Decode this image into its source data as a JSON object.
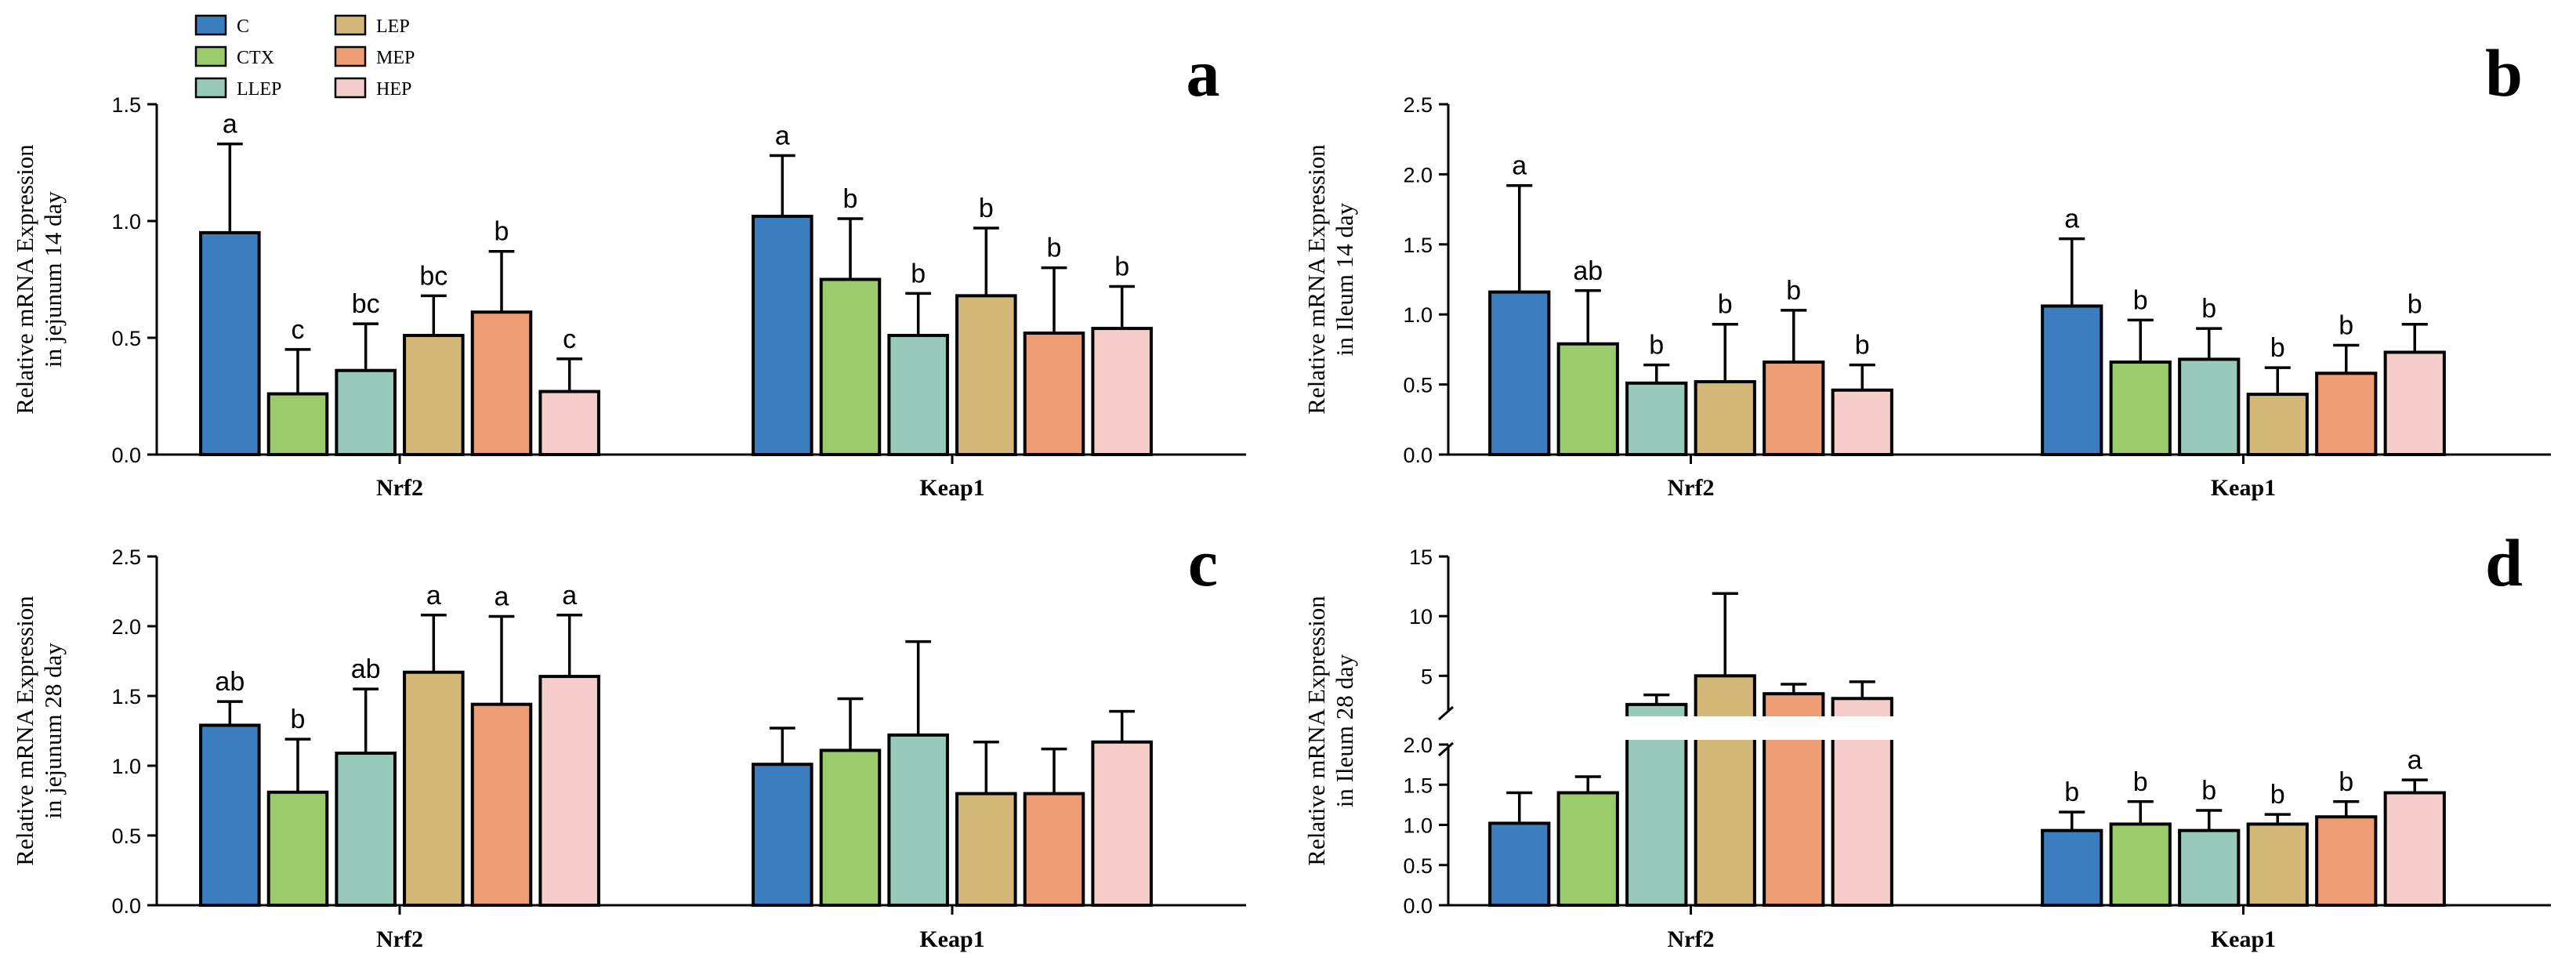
{
  "legend": [
    {
      "name": "C",
      "color": "#3a7ebf"
    },
    {
      "name": "CTX",
      "color": "#9acb6a"
    },
    {
      "name": "LLEP",
      "color": "#98cabc"
    },
    {
      "name": "LEP",
      "color": "#d4b878"
    },
    {
      "name": "MEP",
      "color": "#ee9c74"
    },
    {
      "name": "HEP",
      "color": "#f5cdcb"
    }
  ],
  "chart_data": [
    {
      "panel": "a",
      "type": "bar",
      "ylabel": [
        "Relative mRNA Expression",
        "in jejunum 14 day"
      ],
      "categories": [
        "Nrf2",
        "Keap1"
      ],
      "ylim": [
        0,
        1.5
      ],
      "yticks": [
        "0.0",
        "0.5",
        "1.0",
        "1.5"
      ],
      "series": [
        {
          "name": "C",
          "values": [
            0.95,
            1.02
          ],
          "errors": [
            0.38,
            0.26
          ],
          "letters": [
            "a",
            "a"
          ]
        },
        {
          "name": "CTX",
          "values": [
            0.26,
            0.75
          ],
          "errors": [
            0.19,
            0.26
          ],
          "letters": [
            "c",
            "b"
          ]
        },
        {
          "name": "LLEP",
          "values": [
            0.36,
            0.51
          ],
          "errors": [
            0.2,
            0.18
          ],
          "letters": [
            "bc",
            "b"
          ]
        },
        {
          "name": "LEP",
          "values": [
            0.51,
            0.68
          ],
          "errors": [
            0.17,
            0.29
          ],
          "letters": [
            "bc",
            "b"
          ]
        },
        {
          "name": "MEP",
          "values": [
            0.61,
            0.52
          ],
          "errors": [
            0.26,
            0.28
          ],
          "letters": [
            "b",
            "b"
          ]
        },
        {
          "name": "HEP",
          "values": [
            0.27,
            0.54
          ],
          "errors": [
            0.14,
            0.18
          ],
          "letters": [
            "c",
            "b"
          ]
        }
      ]
    },
    {
      "panel": "b",
      "type": "bar",
      "ylabel": [
        "Relative mRNA Expression",
        "in Ileum 14 day"
      ],
      "categories": [
        "Nrf2",
        "Keap1"
      ],
      "ylim": [
        0,
        2.5
      ],
      "yticks": [
        "0.0",
        "0.5",
        "1.0",
        "1.5",
        "2.0",
        "2.5"
      ],
      "series": [
        {
          "name": "C",
          "values": [
            1.16,
            1.06
          ],
          "errors": [
            0.76,
            0.48
          ],
          "letters": [
            "a",
            "a"
          ]
        },
        {
          "name": "CTX",
          "values": [
            0.79,
            0.66
          ],
          "errors": [
            0.38,
            0.3
          ],
          "letters": [
            "ab",
            "b"
          ]
        },
        {
          "name": "LLEP",
          "values": [
            0.51,
            0.68
          ],
          "errors": [
            0.13,
            0.22
          ],
          "letters": [
            "b",
            "b"
          ]
        },
        {
          "name": "LEP",
          "values": [
            0.52,
            0.43
          ],
          "errors": [
            0.41,
            0.19
          ],
          "letters": [
            "b",
            "b"
          ]
        },
        {
          "name": "MEP",
          "values": [
            0.66,
            0.58
          ],
          "errors": [
            0.37,
            0.2
          ],
          "letters": [
            "b",
            "b"
          ]
        },
        {
          "name": "HEP",
          "values": [
            0.46,
            0.73
          ],
          "errors": [
            0.18,
            0.2
          ],
          "letters": [
            "b",
            "b"
          ]
        }
      ]
    },
    {
      "panel": "c",
      "type": "bar",
      "ylabel": [
        "Relative mRNA Expression",
        "in jejunum 28 day"
      ],
      "categories": [
        "Nrf2",
        "Keap1"
      ],
      "ylim": [
        0,
        2.5
      ],
      "yticks": [
        "0.0",
        "0.5",
        "1.0",
        "1.5",
        "2.0",
        "2.5"
      ],
      "series": [
        {
          "name": "C",
          "values": [
            1.29,
            1.01
          ],
          "errors": [
            0.17,
            0.26
          ],
          "letters": [
            "ab",
            ""
          ]
        },
        {
          "name": "CTX",
          "values": [
            0.81,
            1.11
          ],
          "errors": [
            0.38,
            0.37
          ],
          "letters": [
            "b",
            ""
          ]
        },
        {
          "name": "LLEP",
          "values": [
            1.09,
            1.22
          ],
          "errors": [
            0.46,
            0.67
          ],
          "letters": [
            "ab",
            ""
          ]
        },
        {
          "name": "LEP",
          "values": [
            1.67,
            0.8
          ],
          "errors": [
            0.41,
            0.37
          ],
          "letters": [
            "a",
            ""
          ]
        },
        {
          "name": "MEP",
          "values": [
            1.44,
            0.8
          ],
          "errors": [
            0.63,
            0.32
          ],
          "letters": [
            "a",
            ""
          ]
        },
        {
          "name": "HEP",
          "values": [
            1.64,
            1.17
          ],
          "errors": [
            0.44,
            0.22
          ],
          "letters": [
            "a",
            ""
          ]
        }
      ]
    },
    {
      "panel": "d",
      "type": "bar",
      "ylabel": [
        "Relative mRNA Expression",
        "in Ileum 28 day"
      ],
      "categories": [
        "Nrf2",
        "Keap1"
      ],
      "ylim": [
        0,
        15
      ],
      "axis_break": {
        "lower": [
          0,
          2.0
        ],
        "upper": [
          2.0,
          15
        ]
      },
      "yticks_lower": [
        "0.0",
        "0.5",
        "1.0",
        "1.5",
        "2.0"
      ],
      "yticks_upper": [
        "5",
        "10",
        "15"
      ],
      "series": [
        {
          "name": "C",
          "values": [
            1.02,
            0.93
          ],
          "errors": [
            0.38,
            0.23
          ],
          "letters": [
            "",
            "b"
          ]
        },
        {
          "name": "CTX",
          "values": [
            1.4,
            1.01
          ],
          "errors": [
            0.2,
            0.28
          ],
          "letters": [
            "",
            "b"
          ]
        },
        {
          "name": "LLEP",
          "values": [
            2.6,
            0.93
          ],
          "errors": [
            0.8,
            0.25
          ],
          "letters": [
            "",
            "b"
          ]
        },
        {
          "name": "LEP",
          "values": [
            5.0,
            1.01
          ],
          "errors": [
            6.9,
            0.12
          ],
          "letters": [
            "",
            "b"
          ]
        },
        {
          "name": "MEP",
          "values": [
            3.5,
            1.1
          ],
          "errors": [
            0.8,
            0.19
          ],
          "letters": [
            "",
            "b"
          ]
        },
        {
          "name": "HEP",
          "values": [
            3.1,
            1.4
          ],
          "errors": [
            1.4,
            0.16
          ],
          "letters": [
            "",
            "a"
          ]
        }
      ]
    }
  ]
}
